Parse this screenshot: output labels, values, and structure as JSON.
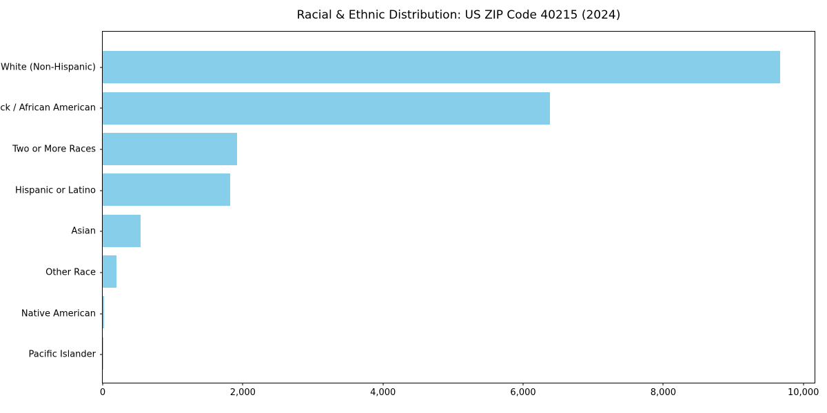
{
  "chart_data": {
    "type": "bar",
    "orientation": "horizontal",
    "title": "Racial & Ethnic Distribution: US ZIP Code 40215 (2024)",
    "categories": [
      "White (Non-Hispanic)",
      "Black / African American",
      "Two or More Races",
      "Hispanic or Latino",
      "Asian",
      "Other Race",
      "Native American",
      "Pacific Islander"
    ],
    "values": [
      9670,
      6380,
      1915,
      1815,
      540,
      195,
      15,
      4
    ],
    "xlabel": "",
    "ylabel": "",
    "xlim": [
      0,
      10160
    ],
    "xticks": [
      0,
      2000,
      4000,
      6000,
      8000,
      10000
    ],
    "xtick_labels": [
      "0",
      "2,000",
      "4,000",
      "6,000",
      "8,000",
      "10,000"
    ],
    "grid": false,
    "legend": "none",
    "bar_color": "#87CEEB",
    "axis_color": "#000000",
    "background_color": "#ffffff"
  }
}
